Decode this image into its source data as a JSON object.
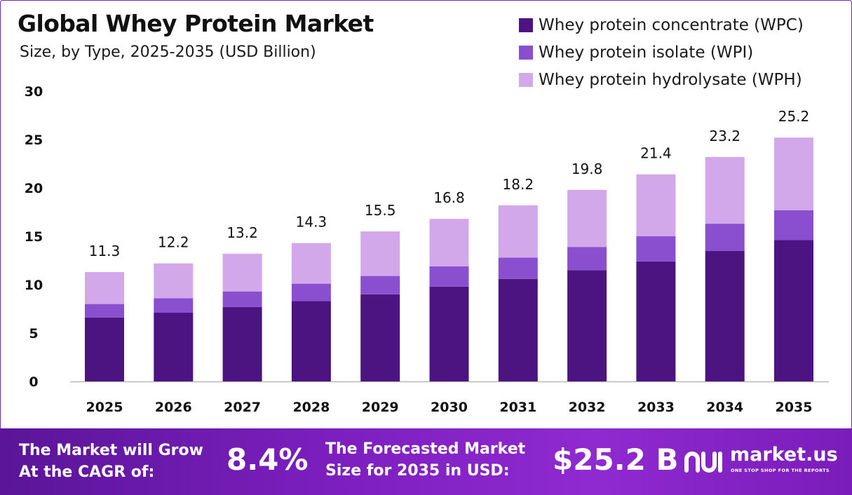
{
  "colors": {
    "wpc": "#4b1480",
    "wpi": "#8a4fcf",
    "wph": "#d2a8ea",
    "axis": "#b8b8b8",
    "text": "#111111"
  },
  "chart_data": {
    "type": "bar",
    "stacked": true,
    "title": "Global Whey Protein Market",
    "subtitle": "Size, by Type, 2025-2035 (USD Billion)",
    "categories": [
      "2025",
      "2026",
      "2027",
      "2028",
      "2029",
      "2030",
      "2031",
      "2032",
      "2033",
      "2034",
      "2035"
    ],
    "series": [
      {
        "name": "Whey protein concentrate (WPC)",
        "values": [
          6.6,
          7.1,
          7.7,
          8.3,
          9.0,
          9.8,
          10.6,
          11.5,
          12.4,
          13.5,
          14.6
        ]
      },
      {
        "name": "Whey protein isolate (WPI)",
        "values": [
          1.4,
          1.5,
          1.6,
          1.8,
          1.9,
          2.1,
          2.2,
          2.4,
          2.6,
          2.8,
          3.1
        ]
      },
      {
        "name": "Whey protein hydrolysate (WPH)",
        "values": [
          3.3,
          3.6,
          3.9,
          4.2,
          4.6,
          4.9,
          5.4,
          5.9,
          6.4,
          6.9,
          7.5
        ]
      }
    ],
    "totals": [
      "11.3",
      "12.2",
      "13.2",
      "14.3",
      "15.5",
      "16.8",
      "18.2",
      "19.8",
      "21.4",
      "23.2",
      "25.2"
    ],
    "totals_values": [
      11.3,
      12.2,
      13.2,
      14.3,
      15.5,
      16.8,
      18.2,
      19.8,
      21.4,
      23.2,
      25.2
    ],
    "y_ticks": [
      0,
      5,
      10,
      15,
      20,
      25,
      30
    ],
    "ylim": [
      0,
      30
    ],
    "xlabel": "",
    "ylabel": "",
    "grid": false,
    "legend_position": "top-right"
  },
  "footer": {
    "cagr_line1": "The Market will Grow",
    "cagr_line2": "At the CAGR of:",
    "cagr_value": "8.4%",
    "forecast_line1": "The Forecasted Market",
    "forecast_line2": "Size for 2035 in USD:",
    "forecast_value": "$25.2 B",
    "logo_text": "market.us",
    "logo_tagline": "ONE STOP SHOP FOR THE REPORTS"
  }
}
